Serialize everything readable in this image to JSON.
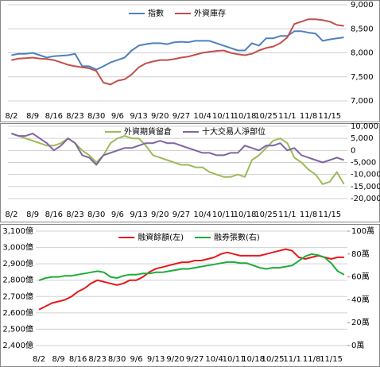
{
  "chart_data": [
    {
      "type": "line",
      "y_axis_position": "right",
      "grid": true,
      "categories": [
        "8/2",
        null,
        null,
        "8/9",
        null,
        null,
        "8/16",
        null,
        null,
        "8/23",
        null,
        null,
        "8/30",
        null,
        null,
        "9/6",
        null,
        null,
        "9/13",
        null,
        null,
        "9/20",
        null,
        null,
        "9/27",
        null,
        null,
        "10/4",
        null,
        null,
        "10/11",
        null,
        null,
        "10/18",
        null,
        null,
        "10/25",
        null,
        null,
        "11/1",
        null,
        null,
        "11/8",
        null,
        null,
        "11/15",
        null,
        null
      ],
      "series": [
        {
          "name": "指數",
          "color": "#4f81bd",
          "values": [
            7950,
            7980,
            7980,
            8000,
            7950,
            7900,
            7930,
            7940,
            7950,
            7980,
            7720,
            7720,
            7650,
            7720,
            7800,
            7850,
            7900,
            8050,
            8150,
            8180,
            8200,
            8200,
            8180,
            8220,
            8230,
            8220,
            8250,
            8250,
            8250,
            8200,
            8150,
            8100,
            8050,
            8050,
            8200,
            8150,
            8300,
            8300,
            8350,
            8350,
            8450,
            8450,
            8420,
            8400,
            8250,
            8280,
            8300,
            8320
          ]
        },
        {
          "name": "外資庫存",
          "color": "#c0504d",
          "values": [
            7850,
            7880,
            7890,
            7900,
            7880,
            7870,
            7850,
            7800,
            7750,
            7720,
            7700,
            7680,
            7620,
            7380,
            7340,
            7420,
            7450,
            7550,
            7700,
            7780,
            7820,
            7850,
            7850,
            7870,
            7900,
            7920,
            7960,
            8000,
            8020,
            8040,
            8050,
            8000,
            7970,
            7950,
            7980,
            8050,
            8100,
            8130,
            8200,
            8320,
            8600,
            8650,
            8700,
            8700,
            8680,
            8650,
            8580,
            8560
          ]
        }
      ],
      "ylim": [
        7000,
        9000
      ],
      "yticks": [
        {
          "value": 7000,
          "label": "7,000"
        },
        {
          "value": 7500,
          "label": "7,500"
        },
        {
          "value": 8000,
          "label": "8,000"
        },
        {
          "value": 8500,
          "label": "8,500"
        },
        {
          "value": 9000,
          "label": "9,000"
        }
      ]
    },
    {
      "type": "line",
      "y_axis_position": "right",
      "grid": true,
      "categories": [
        "8/2",
        null,
        null,
        "8/9",
        null,
        null,
        "8/16",
        null,
        null,
        "8/23",
        null,
        null,
        "8/30",
        null,
        null,
        "9/6",
        null,
        null,
        "9/13",
        null,
        null,
        "9/20",
        null,
        null,
        "9/27",
        null,
        null,
        "10/4",
        null,
        null,
        "10/11",
        null,
        null,
        "10/18",
        null,
        null,
        "10/25",
        null,
        null,
        "11/1",
        null,
        null,
        "11/8",
        null,
        null,
        "11/15",
        null,
        null
      ],
      "series": [
        {
          "name": "外資期貨留倉",
          "color": "#9bbb59",
          "values": [
            7000,
            6000,
            5000,
            4000,
            3000,
            2000,
            2000,
            3000,
            5000,
            3000,
            0,
            -2000,
            -5000,
            -2000,
            3000,
            5000,
            6000,
            5000,
            5000,
            2000,
            -2000,
            -3000,
            -4000,
            -5000,
            -6000,
            -6000,
            -7000,
            -7000,
            -9000,
            -10000,
            -11000,
            -11000,
            -10000,
            -11000,
            -4000,
            -2000,
            1000,
            4000,
            5000,
            3000,
            -3000,
            -5000,
            -8000,
            -10000,
            -14000,
            -13000,
            -9000,
            -14000
          ]
        },
        {
          "name": "十大交易人淨部位",
          "color": "#8064a2",
          "values": [
            7000,
            6000,
            6000,
            7000,
            5000,
            3000,
            0,
            2000,
            5000,
            3000,
            -2000,
            -3000,
            -6000,
            -2000,
            -1000,
            0,
            1000,
            1000,
            2000,
            3000,
            3000,
            4000,
            3000,
            3000,
            2000,
            1000,
            0,
            -1000,
            -1000,
            -2000,
            -2000,
            -1000,
            -1000,
            2000,
            1000,
            0,
            2000,
            2000,
            3000,
            0,
            1000,
            -2000,
            -3000,
            -4000,
            -5000,
            -4000,
            -3000,
            -4000
          ]
        }
      ],
      "ylim": [
        -20000,
        10000
      ],
      "yticks": [
        {
          "value": -20000,
          "label": "-20,000"
        },
        {
          "value": -15000,
          "label": "-15,000"
        },
        {
          "value": -10000,
          "label": "-10,000"
        },
        {
          "value": -5000,
          "label": "-5,000"
        },
        0,
        {
          "value": 5000,
          "label": "5,000"
        },
        {
          "value": 10000,
          "label": "10,000"
        }
      ]
    },
    {
      "type": "line",
      "y_axis_position": "left",
      "grid": true,
      "categories": [
        "8/2",
        null,
        null,
        "8/9",
        null,
        null,
        "8/16",
        null,
        null,
        "8/23",
        null,
        null,
        "8/30",
        null,
        null,
        "9/6",
        null,
        null,
        "9/13",
        null,
        null,
        "9/20",
        null,
        null,
        "9/27",
        null,
        null,
        "10/4",
        null,
        null,
        "10/11",
        null,
        null,
        "10/18",
        null,
        null,
        "10/25",
        null,
        null,
        "11/1",
        null,
        null,
        "11/8",
        null,
        null,
        "11/15",
        null,
        null
      ],
      "series": [
        {
          "name": "融資餘額(左)",
          "color": "#e31a1c",
          "values": [
            2620,
            2640,
            2660,
            2670,
            2680,
            2700,
            2730,
            2750,
            2780,
            2800,
            2790,
            2780,
            2770,
            2780,
            2800,
            2800,
            2820,
            2850,
            2870,
            2880,
            2890,
            2900,
            2910,
            2910,
            2920,
            2920,
            2930,
            2940,
            2960,
            2970,
            2960,
            2950,
            2950,
            2950,
            2950,
            2960,
            2970,
            2980,
            2990,
            2980,
            2940,
            2930,
            2940,
            2950,
            2940,
            2930,
            2940,
            2940
          ]
        },
        {
          "name": "融券張數(右)",
          "color": "#1eab3c",
          "axis": "y2",
          "values": [
            57,
            59,
            60,
            60,
            61,
            61,
            62,
            63,
            64,
            65,
            64,
            60,
            59,
            61,
            62,
            62,
            63,
            63,
            64,
            64,
            65,
            66,
            67,
            67,
            68,
            69,
            70,
            71,
            72,
            73,
            73,
            72,
            72,
            70,
            68,
            67,
            68,
            68,
            69,
            70,
            74,
            78,
            80,
            79,
            77,
            72,
            65,
            62
          ]
        }
      ],
      "ylim": [
        2400,
        3100
      ],
      "yticks": [
        {
          "value": 2400,
          "label": "2,400億"
        },
        {
          "value": 2500,
          "label": "2,500億"
        },
        {
          "value": 2600,
          "label": "2,600億"
        },
        {
          "value": 2700,
          "label": "2,700億"
        },
        {
          "value": 2800,
          "label": "2,800億"
        },
        {
          "value": 2900,
          "label": "2,900億"
        },
        {
          "value": 3000,
          "label": "3,000億"
        },
        {
          "value": 3100,
          "label": "3,100億"
        }
      ],
      "y2lim": [
        0,
        100
      ],
      "y2ticks": [
        {
          "value": 0,
          "label": "0萬"
        },
        {
          "value": 20,
          "label": "20萬"
        },
        {
          "value": 40,
          "label": "40萬"
        },
        {
          "value": 60,
          "label": "60萬"
        },
        {
          "value": 80,
          "label": "80萬"
        },
        {
          "value": 100,
          "label": "100萬"
        }
      ]
    }
  ]
}
